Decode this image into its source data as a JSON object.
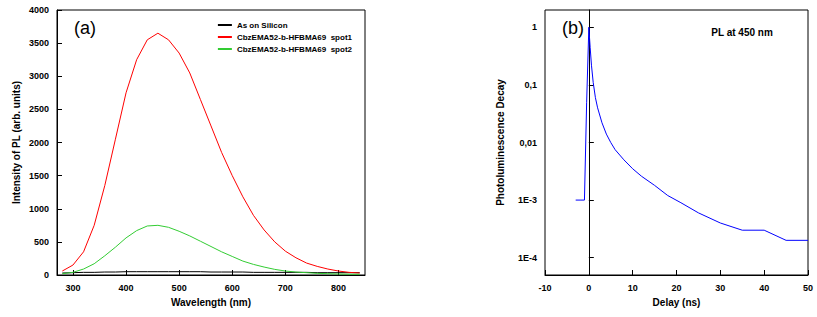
{
  "chart_data": [
    {
      "type": "line",
      "title": "(a)",
      "x_label": "Wavelength (nm)",
      "y_label": "Intensity of PL (arb. units)",
      "x": [
        280,
        300,
        320,
        340,
        360,
        380,
        400,
        420,
        440,
        460,
        480,
        500,
        520,
        540,
        560,
        580,
        600,
        620,
        640,
        660,
        680,
        700,
        720,
        740,
        760,
        780,
        800,
        820,
        840
      ],
      "series": [
        {
          "name": "As on Silicon",
          "color": "#000000",
          "marker": "none",
          "line_style": "solid",
          "values": [
            30,
            35,
            40,
            40,
            45,
            45,
            50,
            50,
            50,
            50,
            50,
            50,
            50,
            50,
            45,
            45,
            45,
            45,
            40,
            40,
            40,
            40,
            40,
            40,
            35,
            35,
            35,
            35,
            35
          ]
        },
        {
          "name": "CbzEMA52-b-HFBMA69  spot1",
          "color": "#ff0000",
          "marker": "none",
          "line_style": "solid",
          "values": [
            60,
            150,
            350,
            750,
            1350,
            2050,
            2750,
            3250,
            3550,
            3650,
            3550,
            3350,
            3050,
            2650,
            2250,
            1850,
            1500,
            1180,
            900,
            680,
            500,
            360,
            260,
            180,
            130,
            90,
            60,
            40,
            30
          ]
        },
        {
          "name": "CbzEMA52-b-HFBMA69  spot2",
          "color": "#33cc33",
          "marker": "none",
          "line_style": "solid",
          "values": [
            20,
            40,
            90,
            170,
            290,
            420,
            560,
            670,
            740,
            750,
            720,
            660,
            590,
            510,
            430,
            350,
            280,
            210,
            160,
            120,
            85,
            60,
            45,
            35,
            25,
            20,
            15,
            12,
            10
          ]
        }
      ],
      "xlim": [
        270,
        850
      ],
      "xticks": [
        300,
        400,
        500,
        600,
        700,
        800
      ],
      "ylim": [
        0,
        4000
      ],
      "yticks": [
        0,
        500,
        1000,
        1500,
        2000,
        2500,
        3000,
        3500,
        4000
      ],
      "grid": false,
      "legend": "upper right"
    },
    {
      "type": "line",
      "title": "(b)",
      "x_label": "Delay (ns)",
      "y_label": "Photoluminescence Decay",
      "annotation": "PL at 450 nm",
      "x": [
        -3,
        -2,
        -1,
        -0.5,
        0,
        0.3,
        0.6,
        1,
        1.5,
        2,
        3,
        4,
        5,
        6,
        8,
        10,
        12,
        15,
        18,
        21,
        25,
        30,
        35,
        40,
        45,
        50
      ],
      "series": [
        {
          "color": "#0000ff",
          "marker": "none",
          "line_style": "solid",
          "values": [
            0.001,
            0.001,
            0.001,
            0.05,
            1,
            0.45,
            0.22,
            0.11,
            0.06,
            0.04,
            0.022,
            0.014,
            0.01,
            0.0075,
            0.005,
            0.0035,
            0.0026,
            0.0018,
            0.0012,
            0.0009,
            0.0006,
            0.0004,
            0.0003,
            0.0003,
            0.0002,
            0.0002
          ]
        }
      ],
      "xlim": [
        -10,
        50
      ],
      "xticks": [
        -10,
        0,
        10,
        20,
        30,
        40,
        50
      ],
      "ylim": [
        5e-05,
        2
      ],
      "yticks": [
        {
          "value": 0.0001,
          "label": "1E-4"
        },
        {
          "value": 0.001,
          "label": "1E-3"
        },
        {
          "value": 0.01,
          "label": "0,01"
        },
        {
          "value": 0.1,
          "label": "0,1"
        },
        1
      ],
      "log": "y",
      "grid": false
    }
  ]
}
